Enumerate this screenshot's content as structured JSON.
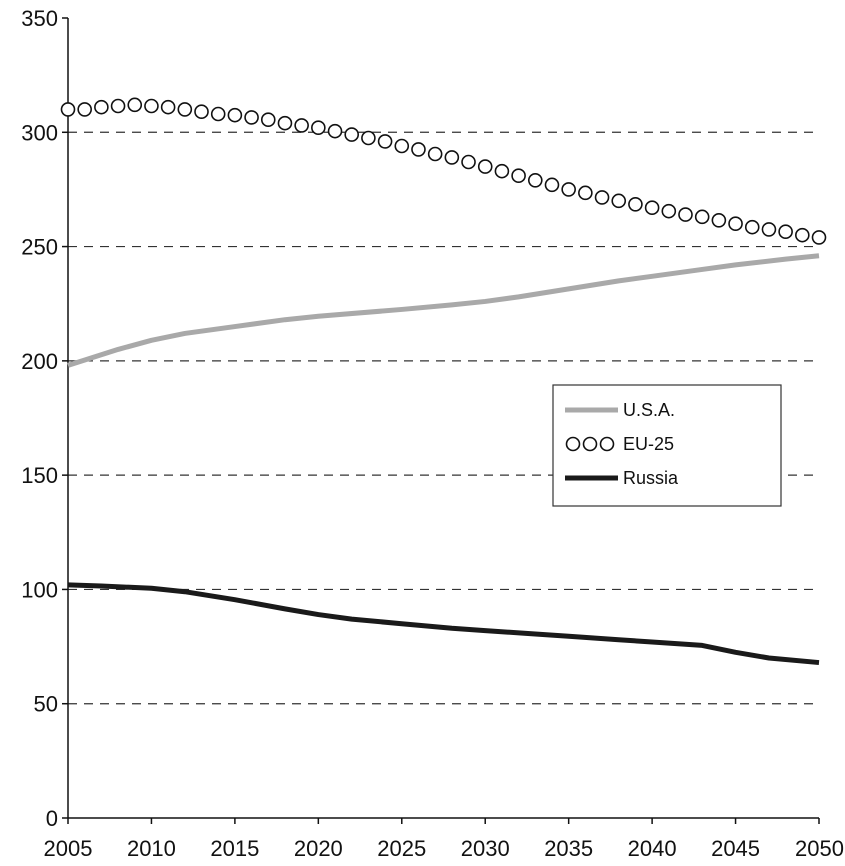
{
  "chart_data": {
    "type": "line",
    "title": "",
    "xlabel": "",
    "ylabel": "",
    "xlim": [
      2005,
      2050
    ],
    "ylim": [
      0,
      350
    ],
    "x_ticks": [
      2005,
      2010,
      2015,
      2020,
      2025,
      2030,
      2035,
      2040,
      2045,
      2050
    ],
    "y_ticks": [
      0,
      50,
      100,
      150,
      200,
      250,
      300,
      350
    ],
    "grid": "horizontal dashed",
    "legend_position": "right-middle",
    "series": [
      {
        "name": "U.S.A.",
        "style": "solid-thick",
        "color": "#a9a9a9",
        "x": [
          2005,
          2008,
          2010,
          2012,
          2015,
          2018,
          2020,
          2025,
          2028,
          2030,
          2032,
          2035,
          2038,
          2040,
          2043,
          2045,
          2048,
          2050
        ],
        "values": [
          198,
          205,
          209,
          212,
          215,
          218,
          219.5,
          222.5,
          224.5,
          226,
          228,
          231.5,
          235,
          237,
          240,
          242,
          244.5,
          246
        ]
      },
      {
        "name": "EU-25",
        "style": "open-circles",
        "color": "#111111",
        "x": [
          2005,
          2006,
          2007,
          2008,
          2009,
          2010,
          2011,
          2012,
          2013,
          2014,
          2015,
          2016,
          2017,
          2018,
          2019,
          2020,
          2021,
          2022,
          2023,
          2024,
          2025,
          2026,
          2027,
          2028,
          2029,
          2030,
          2031,
          2032,
          2033,
          2034,
          2035,
          2036,
          2037,
          2038,
          2039,
          2040,
          2041,
          2042,
          2043,
          2044,
          2045,
          2046,
          2047,
          2048,
          2049,
          2050
        ],
        "values": [
          310,
          310,
          311,
          311.5,
          312,
          311.5,
          311,
          310,
          309,
          308,
          307.5,
          306.5,
          305.5,
          304,
          303,
          302,
          300.5,
          299,
          297.5,
          296,
          294,
          292.5,
          290.5,
          289,
          287,
          285,
          283,
          281,
          279,
          277,
          275,
          273.5,
          271.5,
          270,
          268.5,
          267,
          265.5,
          264,
          263,
          261.5,
          260,
          258.5,
          257.5,
          256.5,
          255,
          254
        ]
      },
      {
        "name": "Russia",
        "style": "solid-thick",
        "color": "#1a1a1a",
        "x": [
          2005,
          2007,
          2010,
          2012,
          2015,
          2018,
          2020,
          2022,
          2025,
          2028,
          2030,
          2033,
          2035,
          2038,
          2040,
          2043,
          2045,
          2047,
          2050
        ],
        "values": [
          102,
          101.5,
          100.5,
          99,
          95.5,
          91.5,
          89,
          87,
          85,
          83,
          82,
          80.5,
          79.5,
          78,
          77,
          75.5,
          72.5,
          70,
          68
        ]
      }
    ]
  }
}
